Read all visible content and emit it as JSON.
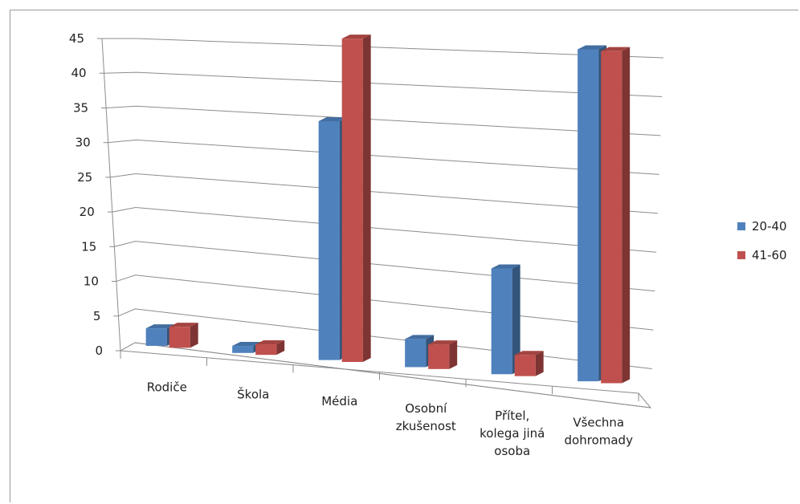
{
  "chart_data": {
    "type": "bar",
    "categories": [
      "Rodiče",
      "Škola",
      "Média",
      "Osobní zkušenost",
      "Přítel, kolega jiná osoba",
      "Všechna dohromady"
    ],
    "category_lines": [
      [
        "Rodiče"
      ],
      [
        "Škola"
      ],
      [
        "Média"
      ],
      [
        "Osobní",
        "zkušenost"
      ],
      [
        "Přítel,",
        "kolega jiná",
        "osoba"
      ],
      [
        "Všechna",
        "dohromady"
      ]
    ],
    "series": [
      {
        "name": "20-40",
        "color": "#4F81BD",
        "values": [
          2.5,
          1,
          34,
          4,
          15,
          47
        ]
      },
      {
        "name": "41-60",
        "color": "#C0504D",
        "values": [
          3,
          1.5,
          46,
          3.5,
          3,
          47
        ]
      }
    ],
    "ylim": [
      0,
      45
    ],
    "yticks": [
      "0",
      "5",
      "10",
      "15",
      "20",
      "25",
      "30",
      "35",
      "40",
      "45"
    ],
    "grid": true,
    "legend": "right",
    "style": "3d-clustered-column"
  }
}
